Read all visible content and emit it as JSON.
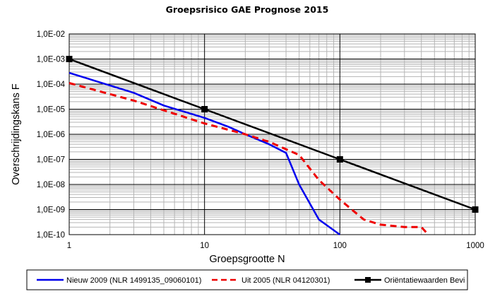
{
  "chart_data": {
    "type": "line",
    "title": "Groepsrisico GAE Prognose 2015",
    "xlabel": "Groepsgrootte N",
    "ylabel": "Overschrijdingskans F",
    "x_scale": "log",
    "y_scale": "log",
    "xlim": [
      1,
      1000
    ],
    "ylim": [
      1e-10,
      0.01
    ],
    "x_tick_labels": [
      "1",
      "10",
      "100",
      "1000"
    ],
    "y_tick_labels": [
      "1,0E-02",
      "1,0E-03",
      "1,0E-04",
      "1,0E-05",
      "1,0E-06",
      "1,0E-07",
      "1,0E-08",
      "1,0E-09",
      "1,0E-10"
    ],
    "grid": true,
    "legend_position": "bottom",
    "series": [
      {
        "name": "Nieuw 2009 (NLR 1499135_09060101)",
        "color": "#0000ee",
        "style": "solid",
        "x": [
          1,
          3,
          5,
          10,
          15,
          20,
          30,
          40,
          50,
          70,
          100
        ],
        "y": [
          0.00028,
          4.5e-05,
          1.4e-05,
          4.5e-06,
          2e-06,
          1e-06,
          4e-07,
          1.8e-07,
          1e-08,
          4e-10,
          1e-10
        ]
      },
      {
        "name": "Uit 2005 (NLR 04120301)",
        "color": "#ee0000",
        "style": "dashed",
        "x": [
          1,
          3,
          5,
          10,
          20,
          30,
          50,
          70,
          100,
          150,
          200,
          300,
          400,
          450
        ],
        "y": [
          0.00011,
          2.2e-05,
          9e-06,
          2.7e-06,
          1e-06,
          5e-07,
          1.5e-07,
          1.5e-08,
          2.5e-09,
          4e-10,
          2.5e-10,
          2e-10,
          2e-10,
          1e-10
        ]
      },
      {
        "name": "Oriëntatiewaarden  Bevi",
        "color": "#000000",
        "style": "solid-markers",
        "x": [
          1,
          10,
          100,
          1000
        ],
        "y": [
          0.001,
          1e-05,
          1e-07,
          1e-09
        ]
      }
    ]
  }
}
